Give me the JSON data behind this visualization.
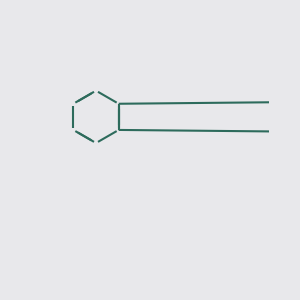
{
  "bg_color": "#e8e8eb",
  "bond_color": "#2d6b5c",
  "N_color": "#0000ee",
  "O_color": "#ee0000",
  "S_color": "#ccaa00",
  "F_color": "#ff66cc",
  "lw": 1.5,
  "dbo": 0.08,
  "fs": 8.5
}
